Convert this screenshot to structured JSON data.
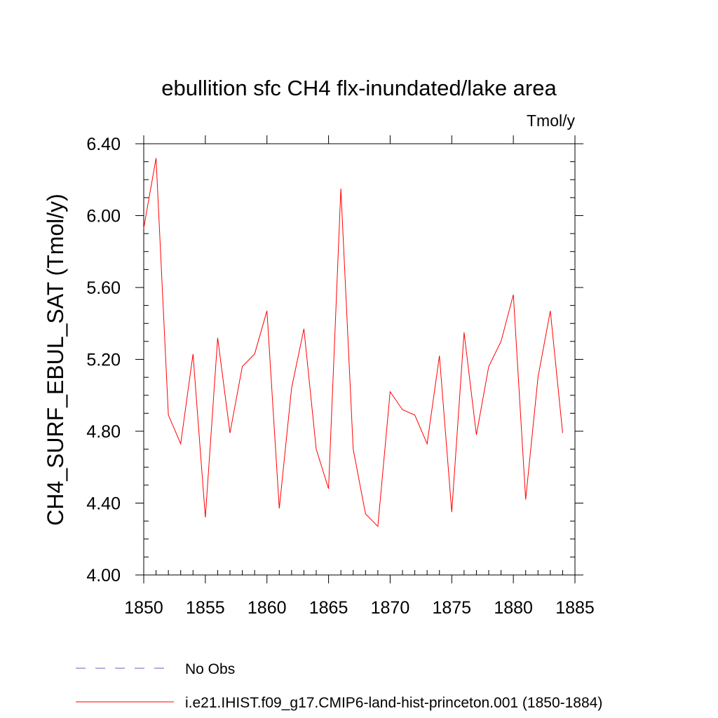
{
  "chart_data": {
    "type": "line",
    "title": "ebullition sfc CH4 flx-inundated/lake area",
    "units_label": "Tmol/y",
    "ylabel": "CH4_SURF_EBUL_SAT  (Tmol/y)",
    "xlabel": "",
    "xlim": [
      1850,
      1885
    ],
    "ylim": [
      4.0,
      6.4
    ],
    "x_ticks": [
      1850,
      1855,
      1860,
      1865,
      1870,
      1875,
      1880,
      1885
    ],
    "x_tick_labels": [
      "1850",
      "1855",
      "1860",
      "1865",
      "1870",
      "1875",
      "1880",
      "1885"
    ],
    "y_ticks": [
      4.0,
      4.4,
      4.8,
      5.2,
      5.6,
      6.0,
      6.4
    ],
    "y_tick_labels": [
      "4.00",
      "4.40",
      "4.80",
      "5.20",
      "5.60",
      "6.00",
      "6.40"
    ],
    "grid": false,
    "legend_position": "bottom",
    "series": [
      {
        "name": "i.e21.IHIST.f09_g17.CMIP6-land-hist-princeton.001 (1850-1884)",
        "color": "#ff0000",
        "style": "solid",
        "x": [
          1850,
          1851,
          1852,
          1853,
          1854,
          1855,
          1856,
          1857,
          1858,
          1859,
          1860,
          1861,
          1862,
          1863,
          1864,
          1865,
          1866,
          1867,
          1868,
          1869,
          1870,
          1871,
          1872,
          1873,
          1874,
          1875,
          1876,
          1877,
          1878,
          1879,
          1880,
          1881,
          1882,
          1883,
          1884
        ],
        "values": [
          5.93,
          6.32,
          4.89,
          4.73,
          5.23,
          4.32,
          5.32,
          4.79,
          5.16,
          5.23,
          5.47,
          4.37,
          5.04,
          5.37,
          4.7,
          4.48,
          6.15,
          4.7,
          4.34,
          4.27,
          5.02,
          4.92,
          4.89,
          4.73,
          5.22,
          4.35,
          5.35,
          4.78,
          5.16,
          5.3,
          5.56,
          4.42,
          5.1,
          5.47,
          4.79
        ]
      },
      {
        "name": "No Obs",
        "color": "#6a5acd",
        "style": "dashed",
        "x": [],
        "values": []
      }
    ]
  }
}
